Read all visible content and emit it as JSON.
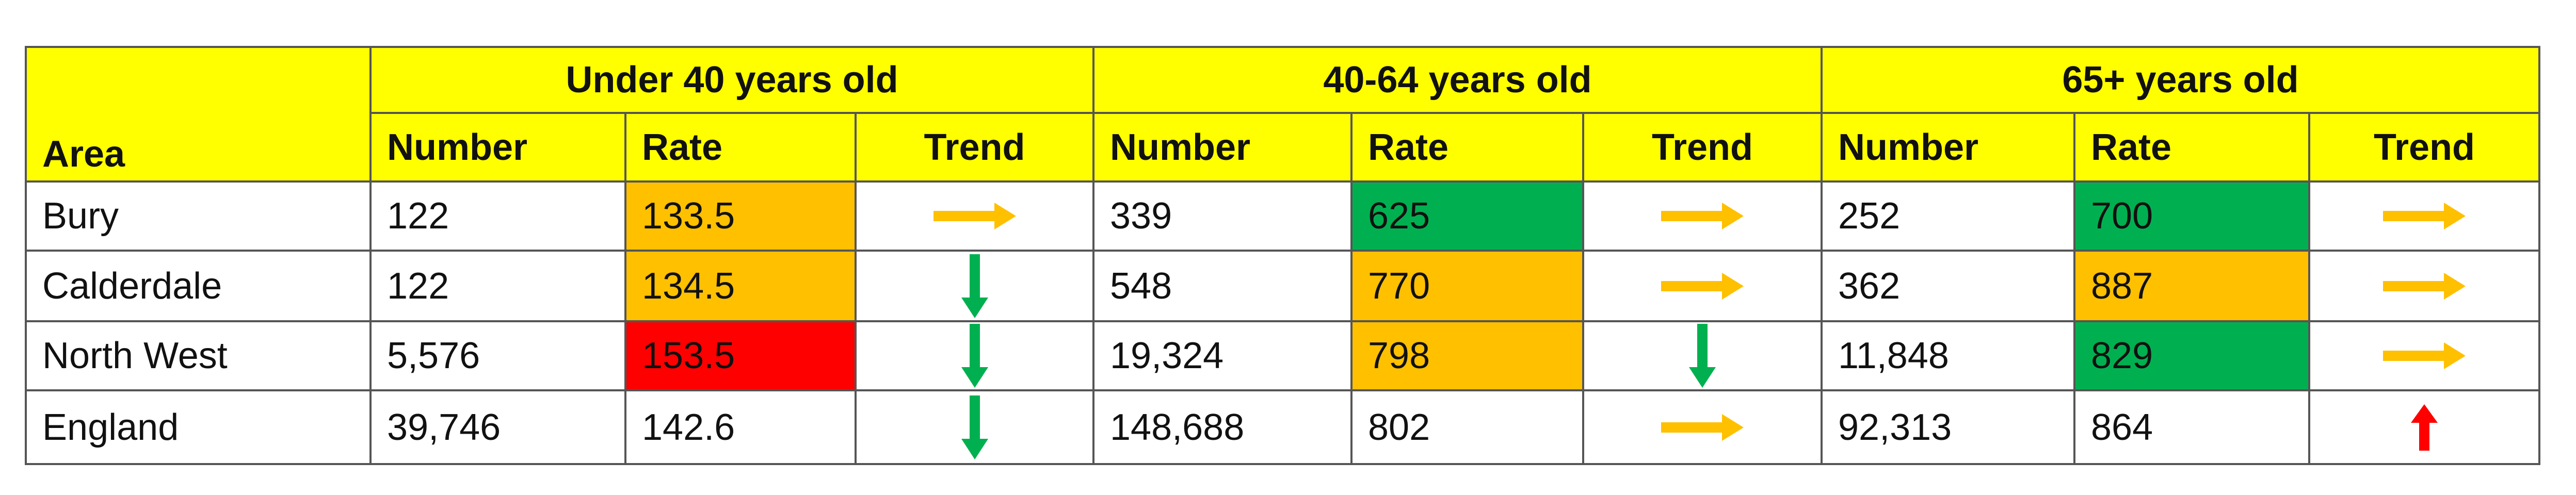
{
  "table": {
    "header": {
      "area": "Area",
      "groups": [
        "Under 40 years old",
        "40-64 years old",
        "65+ years old"
      ],
      "columns": [
        "Number",
        "Rate",
        "Trend",
        "Number",
        "Rate",
        "Trend",
        "Number",
        "Rate",
        "Trend"
      ]
    },
    "rows": [
      [
        "Bury",
        "122",
        "133.5",
        "339",
        "625",
        "252",
        "700"
      ],
      [
        "Calderdale",
        "122",
        "134.5",
        "548",
        "770",
        "362",
        "887"
      ],
      [
        "North West",
        "5,576",
        "153.5",
        "19,324",
        "798",
        "11,848",
        "829"
      ],
      [
        "England",
        "39,746",
        "142.6",
        "148,688",
        "802",
        "92,313",
        "864"
      ]
    ]
  }
}
